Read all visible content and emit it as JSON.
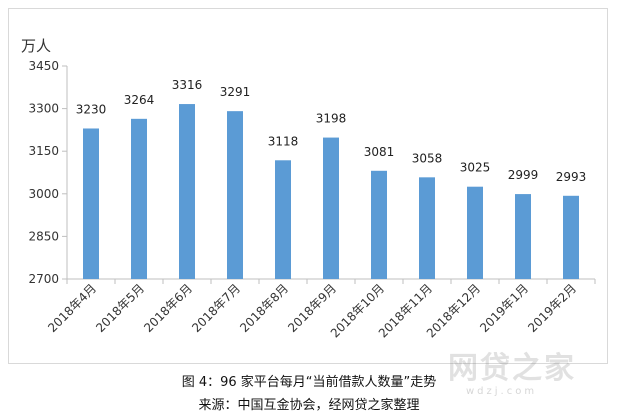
{
  "figure": {
    "caption": "图 4：96 家平台每月“当前借款人数量”走势",
    "source": "来源：中国互金协会，经网贷之家整理",
    "watermark": {
      "brand": "网贷之家",
      "url": "wdzj.com"
    }
  },
  "chart_data": {
    "type": "bar",
    "ylabel": "万人",
    "xlabel": "",
    "ylim": [
      2700,
      3450
    ],
    "yticks": [
      2700,
      2850,
      3000,
      3150,
      3300,
      3450
    ],
    "categories": [
      "2018年4月",
      "2018年5月",
      "2018年6月",
      "2018年7月",
      "2018年8月",
      "2018年9月",
      "2018年10月",
      "2018年11月",
      "2018年12月",
      "2019年1月",
      "2019年2月"
    ],
    "values": [
      3230,
      3264,
      3316,
      3291,
      3118,
      3198,
      3081,
      3058,
      3025,
      2999,
      2993
    ],
    "data_labels": true,
    "grid": false,
    "bar_color": "#5b9bd5",
    "axis_color": "#bfbfbf"
  }
}
